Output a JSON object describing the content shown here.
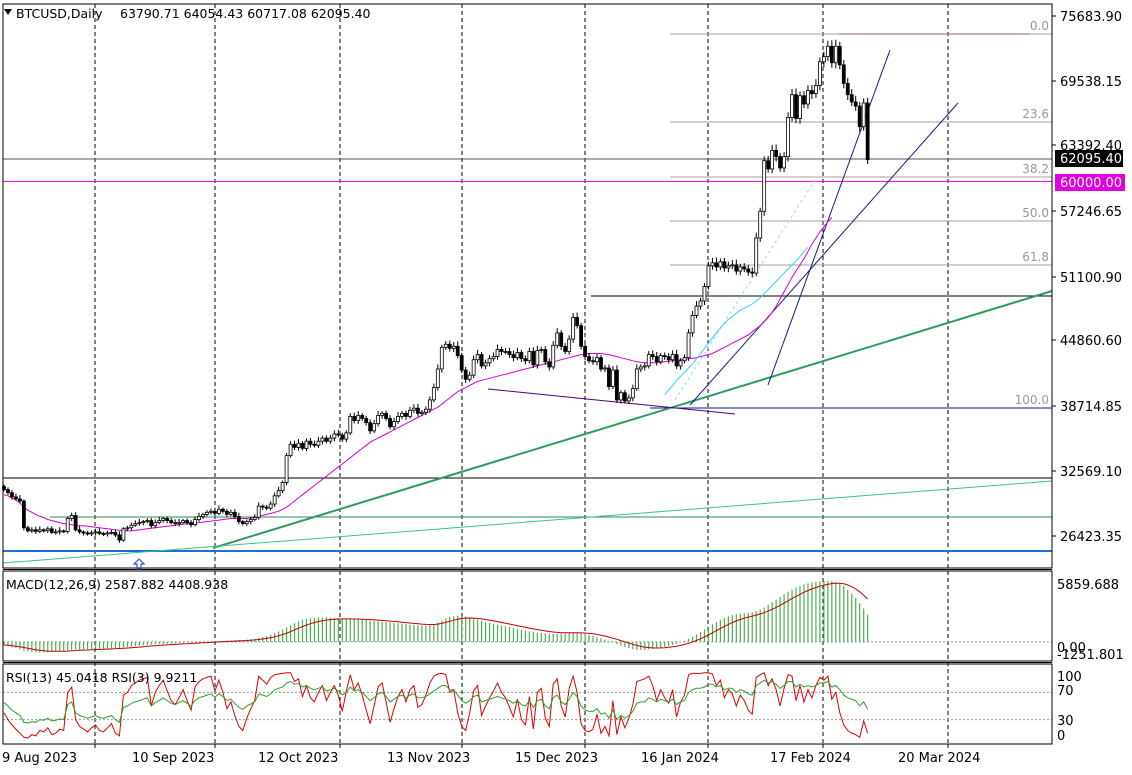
{
  "chart_data": [
    {
      "type": "candlestick",
      "symbol": "BTCUSD",
      "timeframe": "Daily",
      "header_label": "BTCUSD,Daily",
      "ohlc_label": "63790.71 64054.43 60717.08 62095.40",
      "last": {
        "open": 63790.71,
        "high": 64054.43,
        "low": 60717.08,
        "close": 62095.4
      },
      "current_price_label": "62095.40",
      "ylim": [
        22500,
        77200
      ],
      "y_ticks": [
        "75683.90",
        "69538.15",
        "63392.40",
        "57246.65",
        "51100.90",
        "44860.60",
        "38714.85",
        "32569.10",
        "26423.35"
      ],
      "x_ticks": [
        "9 Aug 2023",
        "10 Sep 2023",
        "12 Oct 2023",
        "13 Nov 2023",
        "15 Dec 2023",
        "16 Jan 2024",
        "17 Feb 2024",
        "20 Mar 2024"
      ],
      "closes": [
        30100,
        29800,
        29400,
        29200,
        29000,
        26400,
        26100,
        26200,
        26050,
        26200,
        26150,
        26300,
        25950,
        26000,
        26100,
        26050,
        27300,
        27600,
        26200,
        26000,
        25900,
        25800,
        25900,
        26000,
        25850,
        25800,
        25900,
        25950,
        25700,
        25200,
        26300,
        26400,
        26650,
        26800,
        26900,
        27000,
        27100,
        26600,
        26900,
        27100,
        27300,
        27100,
        26900,
        26800,
        26900,
        27100,
        26900,
        26700,
        27200,
        27500,
        27700,
        27900,
        28000,
        27800,
        28200,
        28000,
        27700,
        27900,
        27500,
        27000,
        26800,
        27000,
        27200,
        27400,
        28500,
        28400,
        28300,
        28700,
        29500,
        30000,
        30800,
        33400,
        34500,
        34200,
        34600,
        34100,
        34800,
        34500,
        34400,
        34800,
        35100,
        34800,
        35100,
        35500,
        35400,
        35000,
        35600,
        37200,
        36800,
        37300,
        37000,
        36600,
        35800,
        36500,
        37300,
        37500,
        37000,
        36200,
        36700,
        37200,
        37500,
        37200,
        37800,
        38000,
        37500,
        37600,
        37900,
        38800,
        40000,
        41800,
        43900,
        44200,
        43800,
        44000,
        43100,
        41700,
        40800,
        41200,
        42700,
        43200,
        42100,
        42400,
        42800,
        43000,
        43700,
        43500,
        43500,
        43200,
        42900,
        43400,
        42800,
        42600,
        43500,
        42200,
        43600,
        43700,
        42500,
        42000,
        44100,
        45300,
        44000,
        43500,
        44700,
        46800,
        46000,
        44000,
        43000,
        42600,
        42500,
        42900,
        41800,
        41900,
        40100,
        41700,
        38800,
        39500,
        38700,
        39000,
        39900,
        41800,
        42000,
        42100,
        43200,
        43000,
        42500,
        43100,
        43000,
        42700,
        43200,
        42100,
        42600,
        42900,
        45300,
        47000,
        47900,
        48400,
        49800,
        51800,
        52100,
        51700,
        52200,
        51600,
        51800,
        51900,
        51300,
        51700,
        51500,
        51200,
        51100,
        54500,
        57100,
        62000,
        61200,
        63000,
        62400,
        61300,
        62400,
        66200,
        68400,
        66100,
        68300,
        67500,
        68800,
        68500,
        69300,
        71600,
        72100,
        73100,
        71500,
        73100,
        71300,
        69500,
        68400,
        67700,
        67300,
        65300,
        67600,
        62100
      ],
      "ma_pink": [
        29600,
        29500,
        29300,
        29100,
        28800,
        28400,
        28100,
        27900,
        27700,
        27500,
        27400,
        27200,
        27100,
        27000,
        26900,
        26800,
        26800,
        26700,
        26650,
        26600,
        26600,
        26550,
        26500,
        26450,
        26400,
        26350,
        26300,
        26250,
        26200,
        26150,
        26100,
        26100,
        26100,
        26150,
        26200,
        26250,
        26300,
        26350,
        26400,
        26450,
        26500,
        26550,
        26600,
        26650,
        26700,
        26750,
        26800,
        26800,
        26850,
        26900,
        26950,
        27000,
        27050,
        27100,
        27150,
        27200,
        27250,
        27300,
        27300,
        27300,
        27300,
        27300,
        27350,
        27400,
        27500,
        27600,
        27700,
        27800,
        27900,
        28000,
        28200,
        28400,
        28700,
        29000,
        29300,
        29600,
        29900,
        30200,
        30500,
        30800,
        31100,
        31400,
        31700,
        32000,
        32300,
        32600,
        32900,
        33200,
        33500,
        33800,
        34100,
        34400,
        34700,
        34900,
        35100,
        35300,
        35500,
        35700,
        35900,
        36100,
        36300,
        36500,
        36700,
        36900,
        37100,
        37300,
        37500,
        37700,
        37900,
        38100,
        38400,
        38700,
        39000,
        39300,
        39600,
        39800,
        40000,
        40200,
        40400,
        40600,
        40700,
        40800,
        40900,
        41000,
        41100,
        41200,
        41300,
        41400,
        41500,
        41600,
        41700,
        41800,
        41900,
        42000,
        42100,
        42200,
        42300,
        42400,
        42500,
        42600,
        42700,
        42800,
        42900,
        43000,
        43100,
        43200,
        43250,
        43300,
        43300,
        43300,
        43300,
        43250,
        43200,
        43100,
        43000,
        42900,
        42800,
        42700,
        42600,
        42500,
        42450,
        42400,
        42400,
        42400,
        42400,
        42450,
        42500,
        42550,
        42600,
        42650,
        42700,
        42750,
        42800,
        42850,
        42900,
        43000,
        43100,
        43200,
        43300,
        43500,
        43700,
        43900,
        44100,
        44300,
        44500,
        44700,
        44900,
        45100,
        45400,
        45700,
        46000,
        46400,
        46800,
        47300,
        47900,
        48600,
        49300,
        50000,
        50700,
        51300,
        51900,
        52500,
        53200,
        53900,
        54500,
        55100,
        55600,
        56100,
        56500
      ],
      "ma_cyan": [
        0,
        0,
        0,
        0,
        0,
        0,
        0,
        0,
        0,
        0,
        0,
        0,
        0,
        0,
        0,
        0,
        0,
        0,
        0,
        0,
        0,
        0,
        0,
        0,
        0,
        0,
        0,
        0,
        0,
        0,
        0,
        0,
        0,
        0,
        0,
        0,
        0,
        0,
        0,
        0,
        0,
        0,
        0,
        0,
        0,
        0,
        0,
        0,
        0,
        0,
        0,
        0,
        0,
        0,
        0,
        0,
        0,
        0,
        0,
        0,
        0,
        0,
        0,
        0,
        0,
        0,
        0,
        0,
        0,
        0,
        0,
        0,
        0,
        0,
        0,
        0,
        0,
        0,
        0,
        0,
        0,
        0,
        0,
        0,
        0,
        0,
        0,
        0,
        0,
        0,
        0,
        0,
        0,
        0,
        0,
        0,
        0,
        0,
        0,
        0,
        0,
        0,
        0,
        0,
        0,
        0,
        0,
        0,
        0,
        0,
        0,
        0,
        0,
        0,
        0,
        0,
        0,
        0,
        0,
        0,
        0,
        0,
        0,
        0,
        0,
        0,
        0,
        0,
        0,
        0,
        0,
        0,
        0,
        0,
        0,
        0,
        0,
        0,
        0,
        0,
        0,
        0,
        0,
        0,
        0,
        0,
        0,
        0,
        0,
        0,
        0,
        0,
        0,
        0,
        0,
        0,
        0,
        0,
        0,
        0,
        0,
        0,
        0,
        0,
        0,
        0,
        39300,
        39800,
        40200,
        40700,
        41100,
        41500,
        41900,
        42300,
        42800,
        43300,
        43800,
        44300,
        44800,
        45300,
        45800,
        46200,
        46600,
        46900,
        47200,
        47500,
        47700,
        47900,
        48100,
        48400,
        48700,
        49100,
        49500,
        49900,
        50300,
        50700,
        51100,
        51500,
        51900,
        52300,
        52700,
        53200,
        53600
      ],
      "levels": [
        {
          "label": "60000.00",
          "price": 60000,
          "color": "#e000e0"
        }
      ],
      "fibonacci": [
        {
          "label": "0.0",
          "price": 74100
        },
        {
          "label": "23.6",
          "price": 65100
        },
        {
          "label": "38.2",
          "price": 59900
        },
        {
          "label": "50.0",
          "price": 55900
        },
        {
          "label": "61.8",
          "price": 52000
        },
        {
          "label": "100.0",
          "price": 38600
        }
      ]
    },
    {
      "type": "histogram",
      "label": "MACD(12,26,9) 2587.882 4408.938",
      "y_ticks": [
        "5859.688",
        "0.00",
        "-1251.801"
      ],
      "ylim": [
        -1251.801,
        6400
      ],
      "macd": [
        -300,
        -420,
        -520,
        -600,
        -700,
        -820,
        -900,
        -950,
        -1000,
        -1020,
        -1020,
        -1000,
        -970,
        -940,
        -900,
        -860,
        -800,
        -760,
        -730,
        -720,
        -710,
        -700,
        -690,
        -670,
        -650,
        -640,
        -630,
        -600,
        -580,
        -560,
        -520,
        -480,
        -440,
        -400,
        -360,
        -320,
        -290,
        -270,
        -250,
        -220,
        -200,
        -180,
        -160,
        -140,
        -120,
        -100,
        -80,
        -60,
        -40,
        -20,
        0,
        20,
        40,
        60,
        80,
        100,
        120,
        140,
        160,
        180,
        200,
        220,
        260,
        300,
        380,
        460,
        560,
        680,
        820,
        1000,
        1180,
        1380,
        1580,
        1780,
        1960,
        2100,
        2200,
        2260,
        2300,
        2320,
        2330,
        2330,
        2320,
        2300,
        2270,
        2240,
        2210,
        2200,
        2180,
        2150,
        2120,
        2090,
        2060,
        2020,
        1980,
        1940,
        1900,
        1860,
        1820,
        1780,
        1740,
        1700,
        1660,
        1620,
        1600,
        1580,
        1560,
        1600,
        1700,
        1850,
        2050,
        2250,
        2400,
        2500,
        2530,
        2500,
        2430,
        2330,
        2220,
        2120,
        2020,
        1920,
        1830,
        1740,
        1650,
        1560,
        1480,
        1400,
        1320,
        1240,
        1160,
        1080,
        1000,
        940,
        900,
        860,
        820,
        780,
        760,
        760,
        780,
        820,
        860,
        880,
        870,
        840,
        780,
        700,
        600,
        480,
        350,
        220,
        80,
        -60,
        -200,
        -350,
        -480,
        -600,
        -700,
        -760,
        -780,
        -770,
        -730,
        -680,
        -620,
        -550,
        -470,
        -380,
        -280,
        -160,
        -30,
        120,
        300,
        500,
        720,
        960,
        1200,
        1440,
        1680,
        1900,
        2100,
        2280,
        2440,
        2560,
        2640,
        2700,
        2740,
        2780,
        2840,
        2950,
        3100,
        3300,
        3550,
        3800,
        4050,
        4300,
        4550,
        4800,
        5000,
        5200,
        5350,
        5500,
        5600,
        5700,
        5750,
        5800,
        5830,
        5850,
        5820,
        5740,
        5600,
        5350,
        5000,
        4620,
        4200,
        3700,
        3200,
        2600
      ]
    },
    {
      "type": "line",
      "label": "RSI(13) 45.0418  RSI(3) 9.9211",
      "y_ticks": [
        "100",
        "70",
        "30",
        "0"
      ],
      "ylim": [
        0,
        100
      ],
      "rsi13": [
        55,
        50,
        44,
        40,
        36,
        26,
        25,
        27,
        26,
        30,
        29,
        32,
        28,
        29,
        31,
        30,
        52,
        56,
        40,
        36,
        34,
        32,
        34,
        36,
        33,
        32,
        34,
        36,
        30,
        26,
        48,
        50,
        54,
        56,
        58,
        60,
        62,
        50,
        55,
        58,
        62,
        58,
        54,
        52,
        55,
        58,
        54,
        50,
        58,
        62,
        64,
        66,
        68,
        63,
        68,
        64,
        58,
        60,
        54,
        48,
        45,
        50,
        53,
        56,
        68,
        66,
        64,
        68,
        74,
        76,
        78,
        84,
        86,
        82,
        83,
        78,
        80,
        76,
        74,
        76,
        78,
        72,
        74,
        76,
        72,
        66,
        70,
        78,
        72,
        74,
        70,
        64,
        58,
        62,
        68,
        70,
        64,
        56,
        60,
        64,
        66,
        62,
        66,
        68,
        62,
        62,
        64,
        68,
        72,
        76,
        80,
        80,
        74,
        74,
        66,
        58,
        54,
        58,
        64,
        66,
        56,
        58,
        60,
        62,
        64,
        62,
        60,
        58,
        54,
        58,
        52,
        50,
        58,
        48,
        58,
        60,
        50,
        46,
        62,
        66,
        56,
        52,
        60,
        70,
        64,
        50,
        44,
        42,
        42,
        46,
        38,
        40,
        32,
        44,
        30,
        36,
        32,
        36,
        42,
        54,
        56,
        56,
        62,
        60,
        56,
        60,
        58,
        56,
        60,
        52,
        56,
        58,
        70,
        74,
        76,
        76,
        78,
        82,
        82,
        78,
        80,
        74,
        76,
        76,
        70,
        74,
        72,
        68,
        66,
        80,
        84,
        88,
        84,
        86,
        82,
        76,
        80,
        86,
        86,
        78,
        82,
        78,
        80,
        78,
        80,
        84,
        84,
        86,
        78,
        80,
        74,
        66,
        62,
        60,
        58,
        50,
        56,
        45
      ],
      "rsi3": [
        40,
        30,
        22,
        16,
        10,
        4,
        3,
        8,
        6,
        14,
        12,
        18,
        8,
        10,
        16,
        14,
        70,
        78,
        30,
        20,
        16,
        12,
        18,
        22,
        14,
        12,
        18,
        24,
        10,
        6,
        66,
        70,
        80,
        84,
        88,
        90,
        92,
        50,
        70,
        80,
        88,
        72,
        58,
        52,
        62,
        74,
        58,
        44,
        78,
        86,
        90,
        92,
        94,
        72,
        88,
        70,
        46,
        56,
        36,
        20,
        14,
        32,
        46,
        58,
        94,
        88,
        82,
        92,
        96,
        97,
        98,
        99,
        99,
        86,
        90,
        64,
        80,
        62,
        56,
        70,
        80,
        58,
        70,
        80,
        66,
        42,
        72,
        96,
        74,
        84,
        66,
        44,
        24,
        50,
        78,
        84,
        56,
        26,
        46,
        64,
        74,
        56,
        74,
        80,
        48,
        52,
        66,
        84,
        94,
        97,
        98,
        96,
        70,
        74,
        40,
        20,
        14,
        40,
        72,
        80,
        36,
        50,
        62,
        72,
        84,
        70,
        62,
        48,
        34,
        60,
        30,
        22,
        64,
        16,
        70,
        76,
        32,
        20,
        82,
        90,
        50,
        34,
        76,
        94,
        70,
        24,
        14,
        12,
        16,
        38,
        10,
        20,
        6,
        58,
        8,
        34,
        18,
        32,
        52,
        86,
        88,
        90,
        94,
        80,
        58,
        74,
        62,
        54,
        74,
        34,
        56,
        66,
        96,
        98,
        98,
        98,
        99,
        99,
        97,
        80,
        88,
        62,
        74,
        68,
        50,
        66,
        58,
        44,
        38,
        92,
        96,
        99,
        80,
        90,
        74,
        50,
        76,
        96,
        94,
        58,
        80,
        56,
        74,
        62,
        80,
        92,
        88,
        94,
        60,
        70,
        40,
        22,
        14,
        10,
        8,
        4,
        28,
        10
      ]
    }
  ]
}
